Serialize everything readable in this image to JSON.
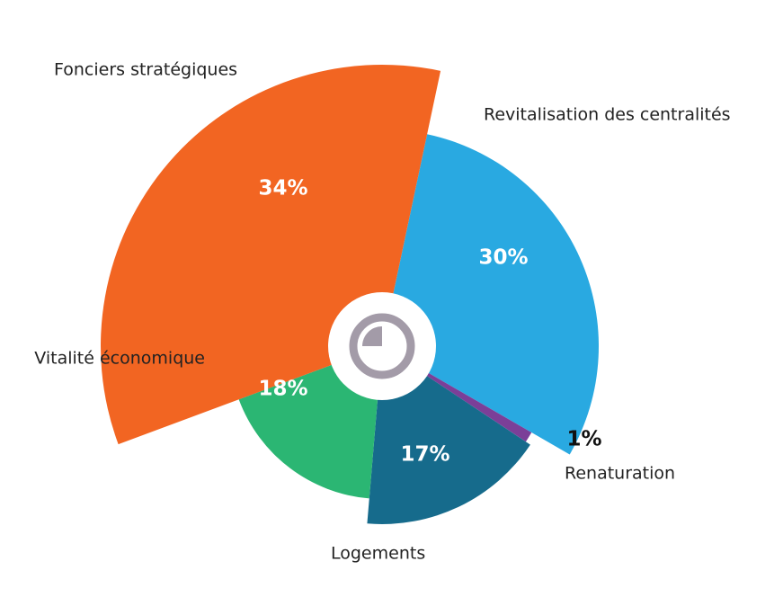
{
  "chart_data": {
    "type": "pie",
    "categories": [
      "Revitalisation des centralités",
      "Renaturation",
      "Logements",
      "Vitalité économique",
      "Fonciers stratégiques"
    ],
    "values": [
      30,
      1,
      17,
      18,
      34
    ],
    "value_labels": [
      "30%",
      "1%",
      "17%",
      "18%",
      "34%"
    ],
    "colors": [
      "#29a9e1",
      "#7b3f98",
      "#166b8c",
      "#2bb673",
      "#f26522"
    ]
  }
}
